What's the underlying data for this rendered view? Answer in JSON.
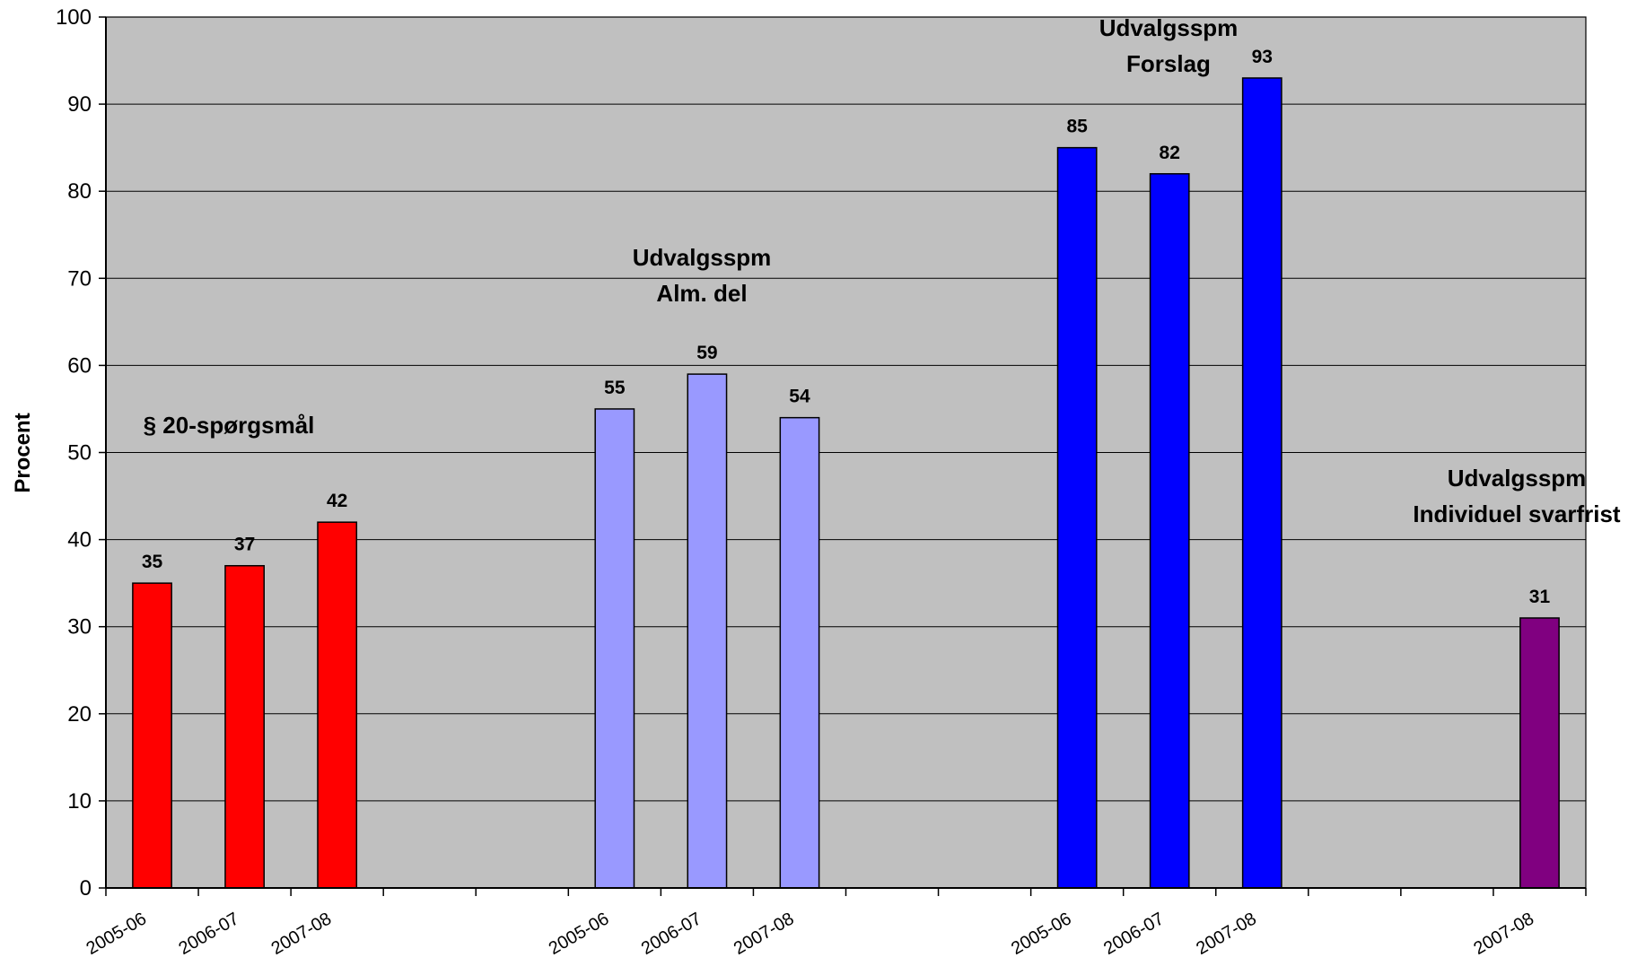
{
  "chart_data": {
    "type": "bar",
    "title": "",
    "xlabel": "",
    "ylabel": "Procent",
    "ylim": [
      0,
      100
    ],
    "yticks": [
      0,
      10,
      20,
      30,
      40,
      50,
      60,
      70,
      80,
      90,
      100
    ],
    "grid": true,
    "legend": "none",
    "colors": {
      "plot_background": "#C0C0C0",
      "gridline": "#000000"
    },
    "categories": [
      "2005-06",
      "2006-07",
      "2007-08",
      "2005-06",
      "2006-07",
      "2007-08",
      "2005-06",
      "2006-07",
      "2007-08",
      "2007-08"
    ],
    "groups": [
      {
        "label_lines": [
          "§ 20-spørgsmål"
        ],
        "color": "#FF0000",
        "bars": [
          {
            "category": "2005-06",
            "value": 35
          },
          {
            "category": "2006-07",
            "value": 37
          },
          {
            "category": "2007-08",
            "value": 42
          }
        ]
      },
      {
        "label_lines": [
          "Udvalgsspm",
          "Alm. del"
        ],
        "color": "#9999FF",
        "bars": [
          {
            "category": "2005-06",
            "value": 55
          },
          {
            "category": "2006-07",
            "value": 59
          },
          {
            "category": "2007-08",
            "value": 54
          }
        ]
      },
      {
        "label_lines": [
          "Udvalgsspm",
          "Forslag"
        ],
        "color": "#0000FF",
        "bars": [
          {
            "category": "2005-06",
            "value": 85
          },
          {
            "category": "2006-07",
            "value": 82
          },
          {
            "category": "2007-08",
            "value": 93
          }
        ]
      },
      {
        "label_lines": [
          "Udvalgsspm",
          "Individuel svarfrist"
        ],
        "color": "#800080",
        "bars": [
          {
            "category": "2007-08",
            "value": 31
          }
        ]
      }
    ]
  }
}
